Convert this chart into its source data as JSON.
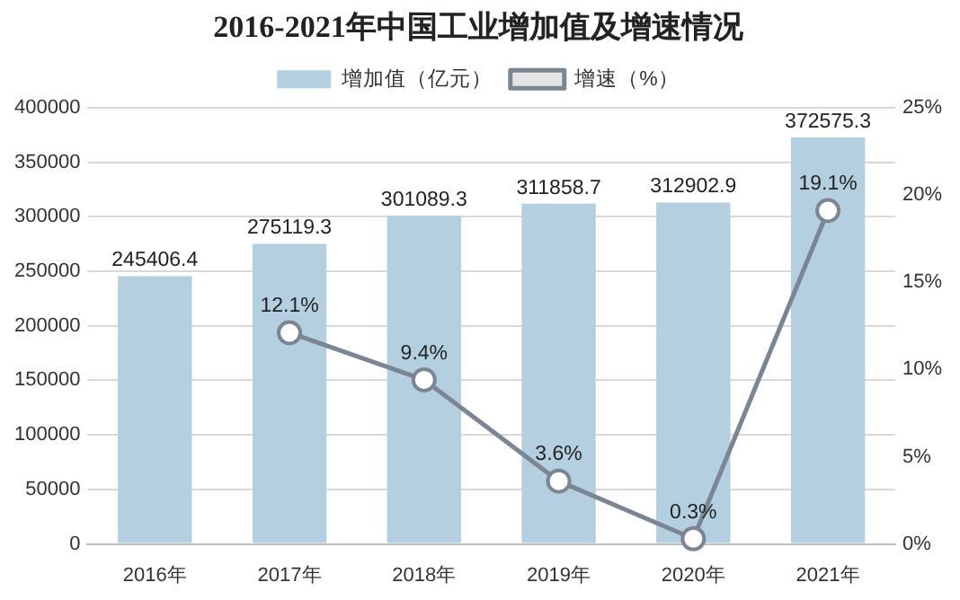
{
  "chart_data": {
    "type": "bar",
    "title": "2016-2021年中国工业增加值及增速情况",
    "categories": [
      "2016年",
      "2017年",
      "2018年",
      "2019年",
      "2020年",
      "2021年"
    ],
    "series": [
      {
        "name": "增加值（亿元）",
        "color": "#b4cfe0",
        "values": [
          245406.4,
          275119.3,
          301089.3,
          311858.7,
          312902.9,
          372575.3
        ],
        "value_labels": [
          "245406.4",
          "275119.3",
          "301089.3",
          "311858.7",
          "312902.9",
          "372575.3"
        ]
      },
      {
        "name": "增速（%）",
        "type": "line",
        "axis": "y2",
        "color": "#7c8593",
        "values": [
          null,
          12.1,
          9.4,
          3.6,
          0.3,
          19.1
        ],
        "value_labels": [
          null,
          "12.1%",
          "9.4%",
          "3.6%",
          "0.3%",
          "19.1%"
        ]
      }
    ],
    "ylim": [
      0,
      400000
    ],
    "yticks": [
      0,
      50000,
      100000,
      150000,
      200000,
      250000,
      300000,
      350000,
      400000
    ],
    "y2lim": [
      0,
      25
    ],
    "y2ticks": [
      {
        "value": 0,
        "label": "0%"
      },
      {
        "value": 5,
        "label": "5%"
      },
      {
        "value": 10,
        "label": "10%"
      },
      {
        "value": 15,
        "label": "15%"
      },
      {
        "value": 20,
        "label": "20%"
      },
      {
        "value": 25,
        "label": "25%"
      }
    ],
    "grid": "y",
    "legend": "top",
    "marker": "circle",
    "line_style": "solid"
  }
}
